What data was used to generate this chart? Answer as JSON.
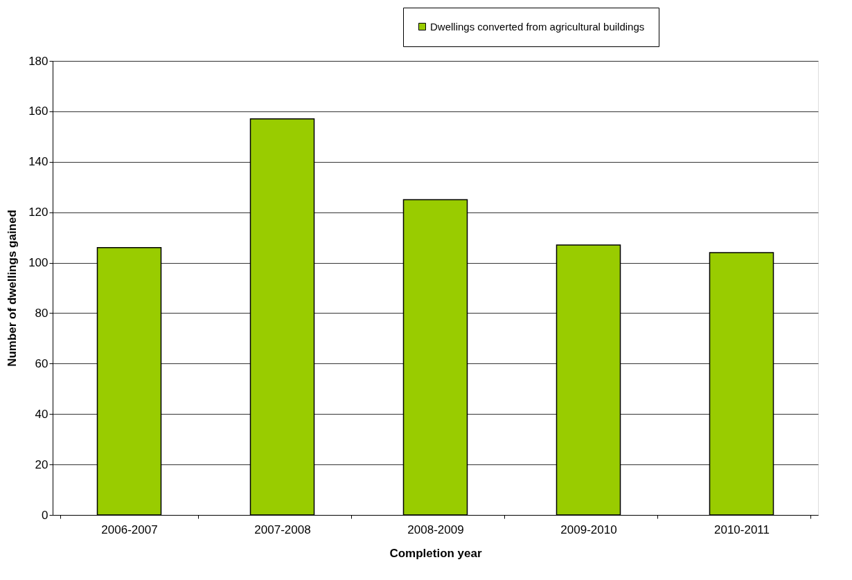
{
  "chart_data": {
    "type": "bar",
    "xlabel": "Completion year",
    "ylabel": "Number of dwellings gained",
    "categories": [
      "2006-2007",
      "2007-2008",
      "2008-2009",
      "2009-2010",
      "2010-2011"
    ],
    "series": [
      {
        "name": "Dwellings converted from agricultural buildings",
        "color": "#99cc00",
        "values": [
          106,
          157,
          125,
          107,
          104
        ]
      }
    ],
    "ylim": [
      0,
      180
    ],
    "yticks": [
      0,
      20,
      40,
      60,
      80,
      100,
      120,
      140,
      160,
      180
    ],
    "grid": "y",
    "legend": "top right"
  }
}
